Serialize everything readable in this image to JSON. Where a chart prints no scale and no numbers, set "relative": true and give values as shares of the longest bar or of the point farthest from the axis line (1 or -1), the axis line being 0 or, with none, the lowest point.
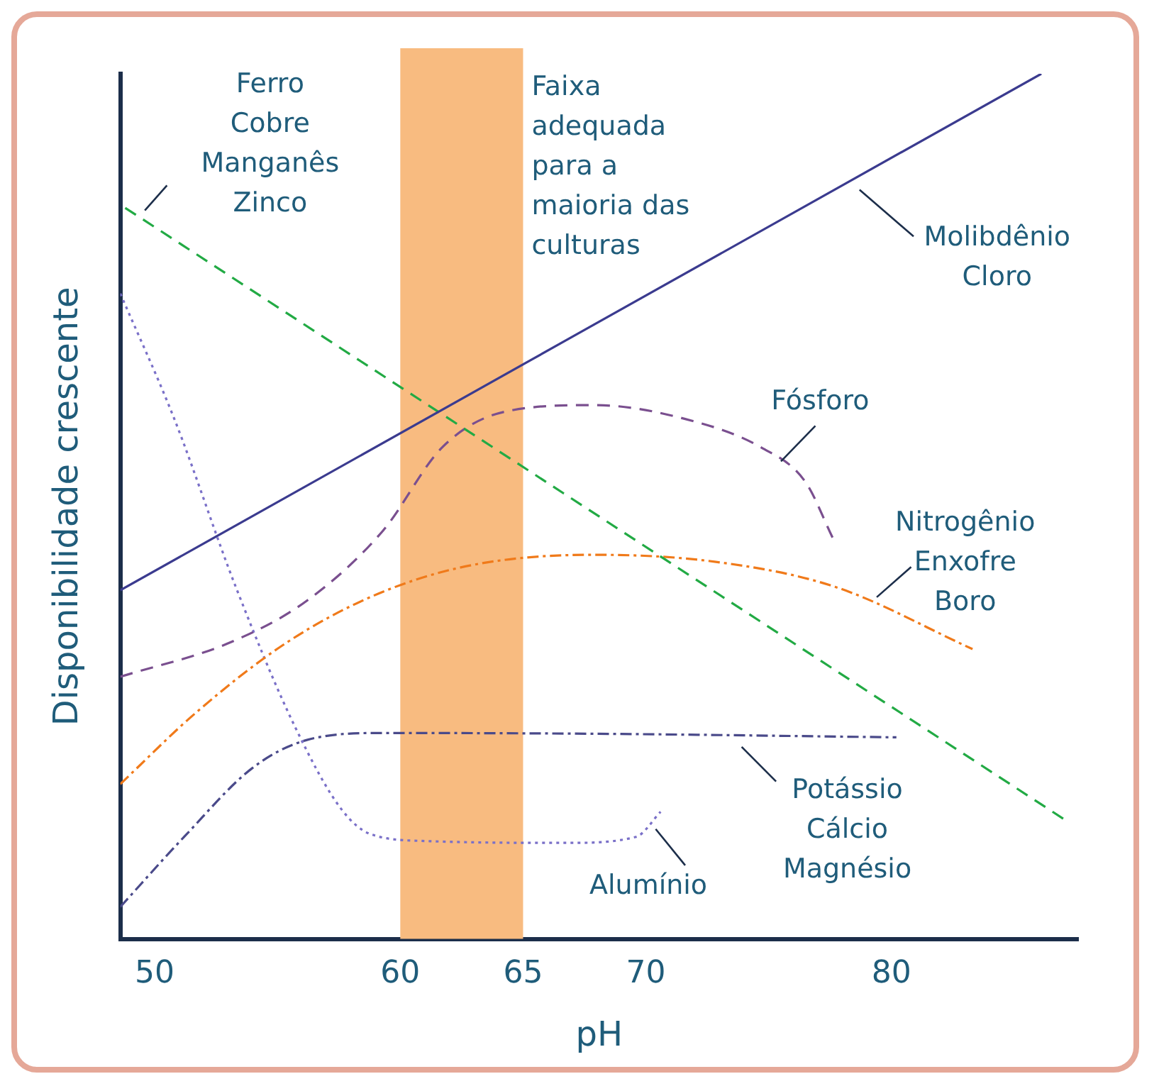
{
  "chart_data": {
    "type": "line",
    "xlabel": "pH",
    "ylabel": "Disponibilidade crescente",
    "relative": true,
    "xlim": [
      48.6,
      87.6
    ],
    "xticks": [
      50,
      60,
      65,
      70,
      80
    ],
    "grid": false,
    "legend": false,
    "marker": "none",
    "bands": [
      {
        "axis": "x",
        "from": 60,
        "to": 65,
        "label": "Faixa\nadequada\npara a\nmaioria das\nculturas",
        "color": "#f8bb80"
      }
    ],
    "series": [
      {
        "name": "Molibdênio\nCloro",
        "color": "#3b3b8f",
        "line_style": "solid",
        "x": [
          48.6,
          86.1
        ],
        "values": [
          0.403,
          1.0
        ]
      },
      {
        "name": "Ferro\nCobre\nManganês\nZinco",
        "color": "#22aa44",
        "line_style": "dashed",
        "x": [
          48.8,
          87.1
        ],
        "values": [
          0.845,
          0.137
        ]
      },
      {
        "name": "Fósforo",
        "color": "#7a4f8f",
        "line_style": "dashed",
        "x": [
          48.6,
          53.1,
          56.2,
          59.3,
          61.7,
          64.2,
          67.9,
          71.6,
          74.7,
          76.5,
          77.6
        ],
        "values": [
          0.303,
          0.343,
          0.391,
          0.472,
          0.568,
          0.609,
          0.617,
          0.601,
          0.568,
          0.528,
          0.464
        ]
      },
      {
        "name": "Nitrogênio\nEnxofre\nBoro",
        "color": "#f07a1a",
        "line_style": "dashdot",
        "x": [
          48.6,
          51.7,
          55.4,
          59.1,
          62.9,
          67.9,
          72.8,
          77.7,
          83.3
        ],
        "values": [
          0.179,
          0.262,
          0.343,
          0.399,
          0.432,
          0.444,
          0.436,
          0.407,
          0.335
        ]
      },
      {
        "name": "Potássio\nCálcio\nMagnésio",
        "color": "#4a4a8a",
        "line_style": "dashdot",
        "x": [
          48.6,
          51.2,
          54.0,
          56.2,
          59.3,
          68.5,
          80.2
        ],
        "values": [
          0.037,
          0.118,
          0.198,
          0.23,
          0.238,
          0.237,
          0.233
        ]
      },
      {
        "name": "Alumínio",
        "color": "#7a70c8",
        "line_style": "dotted",
        "x": [
          48.6,
          50.8,
          53.3,
          55.7,
          57.6,
          58.8,
          61.2,
          66.8,
          69.6,
          70.6
        ],
        "values": [
          0.746,
          0.601,
          0.407,
          0.246,
          0.15,
          0.121,
          0.113,
          0.111,
          0.118,
          0.147
        ]
      }
    ]
  }
}
